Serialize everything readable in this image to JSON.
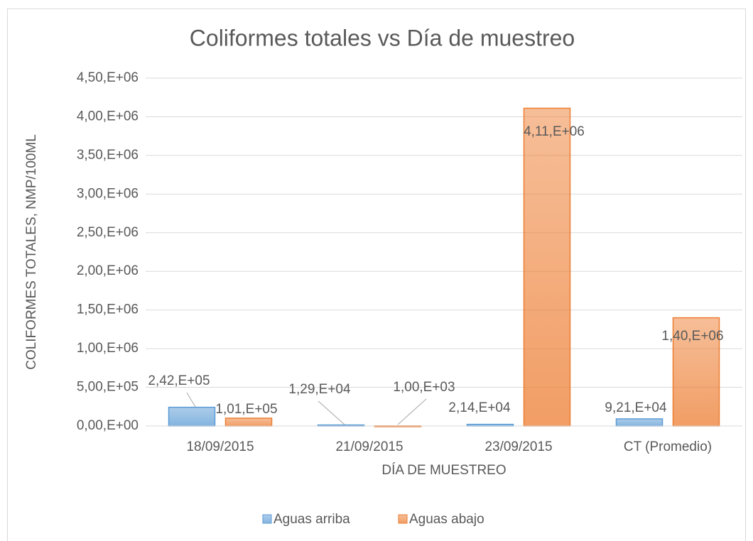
{
  "chart_data": {
    "type": "bar",
    "title": "Coliformes totales vs Día de muestreo",
    "xlabel": "DÍA DE MUESTREO",
    "ylabel": "COLIFORMES TOTALES, NMP/100ML",
    "categories": [
      "18/09/2015",
      "21/09/2015",
      "23/09/2015",
      "CT (Promedio)"
    ],
    "series": [
      {
        "name": "Aguas arriba",
        "color": "#5b9bd5",
        "values": [
          242000,
          12900,
          21400,
          92100
        ],
        "value_labels": [
          "2,42,E+05",
          "1,29,E+04",
          "2,14,E+04",
          "9,21,E+04"
        ]
      },
      {
        "name": "Aguas abajo",
        "color": "#ed7d31",
        "values": [
          101000,
          1000,
          4110000,
          1400000
        ],
        "value_labels": [
          "1,01,E+05",
          "1,00,E+03",
          "4,11,E+06",
          "1,40,E+06"
        ]
      }
    ],
    "ylim": [
      0,
      4500000
    ],
    "yticks": [
      {
        "value": 0,
        "label": "0,00,E+00"
      },
      {
        "value": 500000,
        "label": "5,00,E+05"
      },
      {
        "value": 1000000,
        "label": "1,00,E+06"
      },
      {
        "value": 1500000,
        "label": "1,50,E+06"
      },
      {
        "value": 2000000,
        "label": "2,00,E+06"
      },
      {
        "value": 2500000,
        "label": "2,50,E+06"
      },
      {
        "value": 3000000,
        "label": "3,00,E+06"
      },
      {
        "value": 3500000,
        "label": "3,50,E+06"
      },
      {
        "value": 4000000,
        "label": "4,00,E+06"
      },
      {
        "value": 4500000,
        "label": "4,50,E+06"
      }
    ],
    "grid": true,
    "legend": "bottom"
  }
}
